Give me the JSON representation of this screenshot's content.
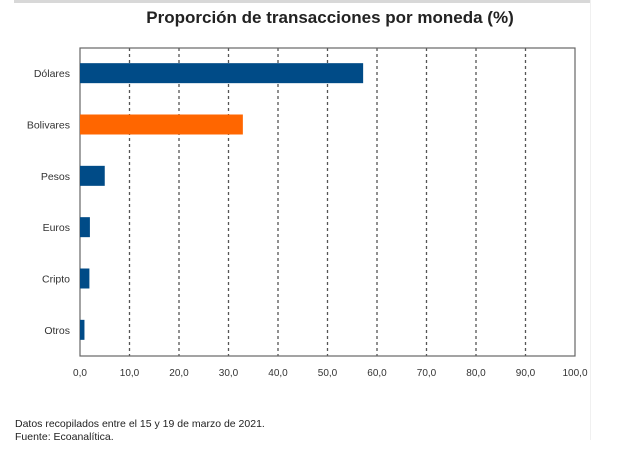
{
  "chart_data": {
    "type": "bar",
    "orientation": "horizontal",
    "title": "Proporción de transacciones por moneda (%)",
    "categories": [
      "Dólares",
      "Bolivares",
      "Pesos",
      "Euros",
      "Cripto",
      "Otros"
    ],
    "values": [
      57.2,
      32.9,
      5.0,
      2.0,
      1.9,
      0.9
    ],
    "bar_colors": [
      "#004b87",
      "#ff6600",
      "#004b87",
      "#004b87",
      "#004b87",
      "#004b87"
    ],
    "xlim": [
      0,
      100
    ],
    "xticks": [
      0,
      10,
      20,
      30,
      40,
      50,
      60,
      70,
      80,
      90,
      100
    ],
    "xtick_labels": [
      "0,0",
      "10,0",
      "20,0",
      "30,0",
      "40,0",
      "50,0",
      "60,0",
      "70,0",
      "80,0",
      "90,0",
      "100,0"
    ],
    "xlabel": "",
    "ylabel": "",
    "grid": "vertical dashed",
    "legend": "none"
  },
  "notes": {
    "line1": "Datos recopilados entre el 15 y 19 de marzo de 2021.",
    "line2": "Fuente: Ecoanalítica."
  }
}
